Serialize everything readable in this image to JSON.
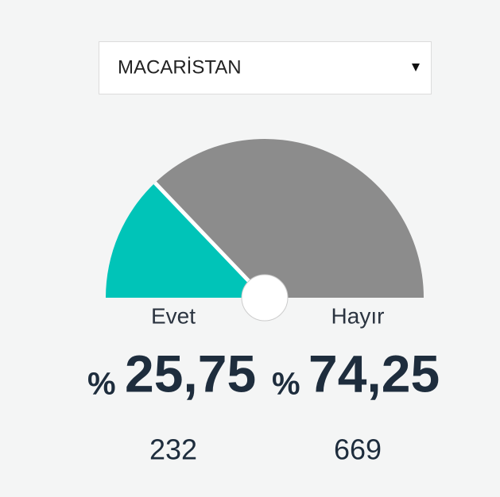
{
  "dropdown": {
    "selected": "MACARİSTAN"
  },
  "chart_data": {
    "type": "gauge",
    "categories": [
      "Evet",
      "Hayır"
    ],
    "values": [
      25.75,
      74.25
    ],
    "value_labels": [
      "25,75",
      "74,25"
    ],
    "percent_sign": "%",
    "counts": [
      232,
      669
    ],
    "colors": [
      "#00c4b8",
      "#8c8c8c"
    ]
  }
}
